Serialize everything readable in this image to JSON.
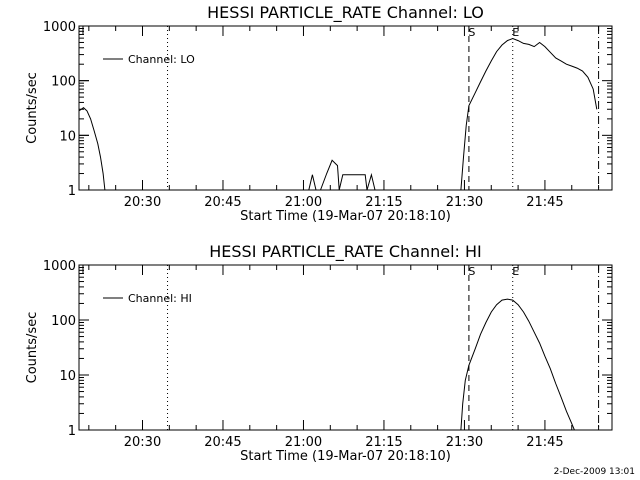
{
  "chart_data": [
    {
      "type": "line",
      "title": "HESSI PARTICLE_RATE Channel: LO",
      "xlabel": "Start Time (19-Mar-07 20:18:10)",
      "ylabel": "Counts/sec",
      "yscale": "log",
      "ylim": [
        1,
        1000
      ],
      "xlim": [
        "20:18:10",
        "21:57:30"
      ],
      "xticks": [
        "20:30",
        "20:45",
        "21:00",
        "21:15",
        "21:30",
        "21:45"
      ],
      "yticks": [
        "1",
        "10",
        "100",
        "1000"
      ],
      "legend": {
        "position": "top-left",
        "entries": [
          "Channel: LO"
        ]
      },
      "markers": [
        {
          "time": "20:34:40",
          "style": "dotted",
          "label": ""
        },
        {
          "time": "21:30:50",
          "style": "dashed",
          "label": "S"
        },
        {
          "time": "21:39:00",
          "style": "dotted",
          "label": "E"
        },
        {
          "time": "21:55:00",
          "style": "dash-dot",
          "label": ""
        }
      ],
      "series": [
        {
          "name": "Channel: LO",
          "segments": [
            [
              [
                "20:18:10",
                28
              ],
              [
                "20:19:00",
                32
              ],
              [
                "20:19:40",
                28
              ],
              [
                "20:20:20",
                20
              ],
              [
                "20:21:00",
                12
              ],
              [
                "20:21:40",
                7
              ],
              [
                "20:22:10",
                4
              ],
              [
                "20:22:40",
                2
              ],
              [
                "20:23:00",
                1
              ]
            ],
            [
              [
                "21:01:00",
                1
              ],
              [
                "21:01:40",
                1.9
              ],
              [
                "21:02:20",
                1
              ],
              [
                "21:03:10",
                1
              ],
              [
                "21:04:20",
                2
              ],
              [
                "21:05:20",
                3.5
              ],
              [
                "21:06:20",
                2.8
              ],
              [
                "21:06:40",
                1
              ],
              [
                "21:07:20",
                1.9
              ],
              [
                "21:09:30",
                1.9
              ],
              [
                "21:11:30",
                1.9
              ],
              [
                "21:11:50",
                1
              ],
              [
                "21:12:40",
                1.9
              ],
              [
                "21:13:20",
                1
              ]
            ],
            [
              [
                "21:29:20",
                1
              ],
              [
                "21:29:50",
                4
              ],
              [
                "21:30:20",
                15
              ],
              [
                "21:30:50",
                35
              ],
              [
                "21:32:00",
                60
              ],
              [
                "21:33:00",
                95
              ],
              [
                "21:34:00",
                150
              ],
              [
                "21:35:00",
                230
              ],
              [
                "21:36:00",
                340
              ],
              [
                "21:37:00",
                450
              ],
              [
                "21:38:00",
                540
              ],
              [
                "21:39:00",
                590
              ],
              [
                "21:40:00",
                540
              ],
              [
                "21:41:00",
                480
              ],
              [
                "21:42:00",
                460
              ],
              [
                "21:43:00",
                420
              ],
              [
                "21:44:00",
                500
              ],
              [
                "21:45:00",
                420
              ],
              [
                "21:46:00",
                330
              ],
              [
                "21:47:00",
                260
              ],
              [
                "21:48:00",
                230
              ],
              [
                "21:49:00",
                200
              ],
              [
                "21:50:00",
                185
              ],
              [
                "21:51:00",
                170
              ],
              [
                "21:52:00",
                150
              ],
              [
                "21:53:00",
                115
              ],
              [
                "21:54:00",
                70
              ],
              [
                "21:54:40",
                30
              ]
            ]
          ]
        }
      ]
    },
    {
      "type": "line",
      "title": "HESSI PARTICLE_RATE Channel: HI",
      "xlabel": "Start Time (19-Mar-07 20:18:10)",
      "ylabel": "Counts/sec",
      "yscale": "log",
      "ylim": [
        1,
        1000
      ],
      "xlim": [
        "20:18:10",
        "21:57:30"
      ],
      "xticks": [
        "20:30",
        "20:45",
        "21:00",
        "21:15",
        "21:30",
        "21:45"
      ],
      "yticks": [
        "1",
        "10",
        "100",
        "1000"
      ],
      "legend": {
        "position": "top-left",
        "entries": [
          "Channel: HI"
        ]
      },
      "markers": [
        {
          "time": "20:34:40",
          "style": "dotted",
          "label": ""
        },
        {
          "time": "21:30:50",
          "style": "dashed",
          "label": "S"
        },
        {
          "time": "21:39:00",
          "style": "dotted",
          "label": "E"
        },
        {
          "time": "21:55:00",
          "style": "dash-dot",
          "label": ""
        }
      ],
      "series": [
        {
          "name": "Channel: HI",
          "segments": [
            [
              [
                "21:29:20",
                1
              ],
              [
                "21:29:40",
                3
              ],
              [
                "21:30:10",
                8
              ],
              [
                "21:30:50",
                15
              ],
              [
                "21:32:00",
                30
              ],
              [
                "21:33:00",
                55
              ],
              [
                "21:34:00",
                90
              ],
              [
                "21:35:00",
                140
              ],
              [
                "21:36:00",
                190
              ],
              [
                "21:37:00",
                230
              ],
              [
                "21:38:00",
                240
              ],
              [
                "21:39:00",
                230
              ],
              [
                "21:40:00",
                190
              ],
              [
                "21:41:00",
                140
              ],
              [
                "21:42:00",
                95
              ],
              [
                "21:43:00",
                60
              ],
              [
                "21:44:00",
                38
              ],
              [
                "21:45:00",
                22
              ],
              [
                "21:46:00",
                13
              ],
              [
                "21:47:00",
                7
              ],
              [
                "21:48:00",
                4
              ],
              [
                "21:49:00",
                2.2
              ],
              [
                "21:50:00",
                1.3
              ],
              [
                "21:50:30",
                1
              ]
            ]
          ]
        }
      ]
    }
  ],
  "footer": "2-Dec-2009 13:01"
}
